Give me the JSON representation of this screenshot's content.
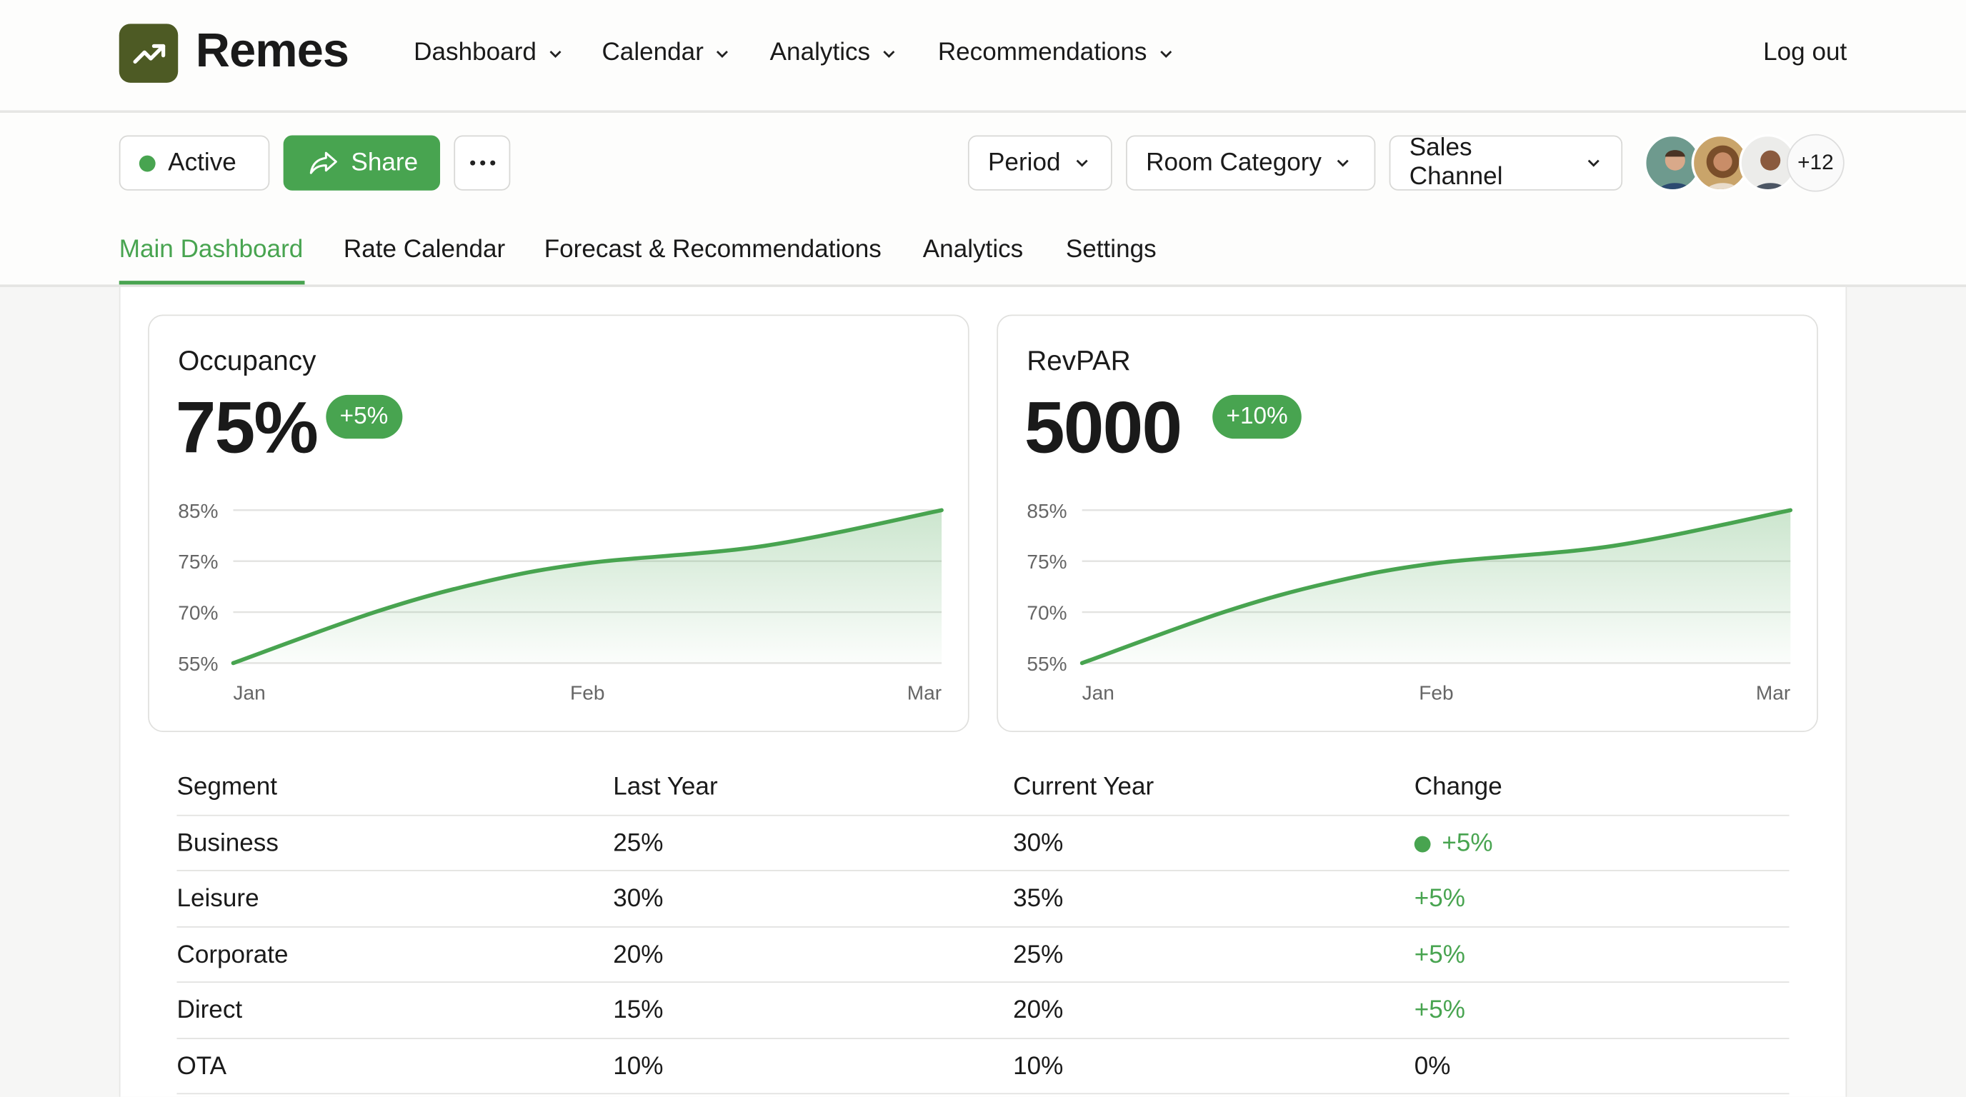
{
  "brand": {
    "name": "Remes",
    "logo_icon": "trending-up-icon",
    "logo_color": "#4d5a24"
  },
  "nav": {
    "items": [
      {
        "label": "Dashboard"
      },
      {
        "label": "Calendar"
      },
      {
        "label": "Analytics"
      },
      {
        "label": "Recommendations"
      }
    ],
    "logout": "Log out"
  },
  "toolbar": {
    "status": "Active",
    "share": "Share",
    "more_icon": "more-horizontal-icon",
    "filters": [
      {
        "label": "Period"
      },
      {
        "label": "Room Category"
      },
      {
        "label": "Sales Channel"
      }
    ],
    "avatars_more": "+12"
  },
  "tabs": [
    {
      "label": "Main Dashboard",
      "active": true
    },
    {
      "label": "Rate Calendar"
    },
    {
      "label": "Forecast & Recommendations"
    },
    {
      "label": "Analytics"
    },
    {
      "label": "Settings"
    }
  ],
  "colors": {
    "accent": "#48a450",
    "text": "#1a1a1a"
  },
  "cards": [
    {
      "title": "Occupancy",
      "value": "75%",
      "change": "+5%"
    },
    {
      "title": "RevPAR",
      "value": "5000",
      "change": "+10%"
    }
  ],
  "chart_data": [
    {
      "type": "area",
      "x": [
        "Jan",
        "Feb",
        "Mar"
      ],
      "yticks": [
        "55%",
        "70%",
        "75%",
        "85%"
      ],
      "ytick_values": [
        55,
        70,
        75,
        85
      ],
      "grid": true,
      "series": [
        {
          "points": [
            [
              "Jan",
              55
            ],
            [
              "Jan-Feb",
              70
            ],
            [
              "Jan-Feb",
              72.9
            ],
            [
              "Feb",
              74.8
            ],
            [
              "Feb-Mar",
              78
            ],
            [
              "Mar",
              85
            ]
          ]
        }
      ]
    },
    {
      "type": "area",
      "x": [
        "Jan",
        "Feb",
        "Mar"
      ],
      "yticks": [
        "55%",
        "70%",
        "75%",
        "85%"
      ],
      "ytick_values": [
        55,
        70,
        75,
        85
      ],
      "grid": true,
      "series": [
        {
          "points": [
            [
              "Jan",
              55
            ],
            [
              "Jan-Feb",
              70
            ],
            [
              "Jan-Feb",
              72.9
            ],
            [
              "Feb",
              74.8
            ],
            [
              "Feb-Mar",
              78
            ],
            [
              "Mar",
              85
            ]
          ]
        }
      ]
    }
  ],
  "table": {
    "headers": [
      "Segment",
      "Last Year",
      "Current Year",
      "Change"
    ],
    "rows": [
      [
        "Business",
        "25%",
        "30%",
        "+5%"
      ],
      [
        "Leisure",
        "30%",
        "35%",
        "+5%"
      ],
      [
        "Corporate",
        "20%",
        "25%",
        "+5%"
      ],
      [
        "Direct",
        "15%",
        "20%",
        "+5%"
      ],
      [
        "OTA",
        "10%",
        "10%",
        "0%"
      ]
    ]
  }
}
